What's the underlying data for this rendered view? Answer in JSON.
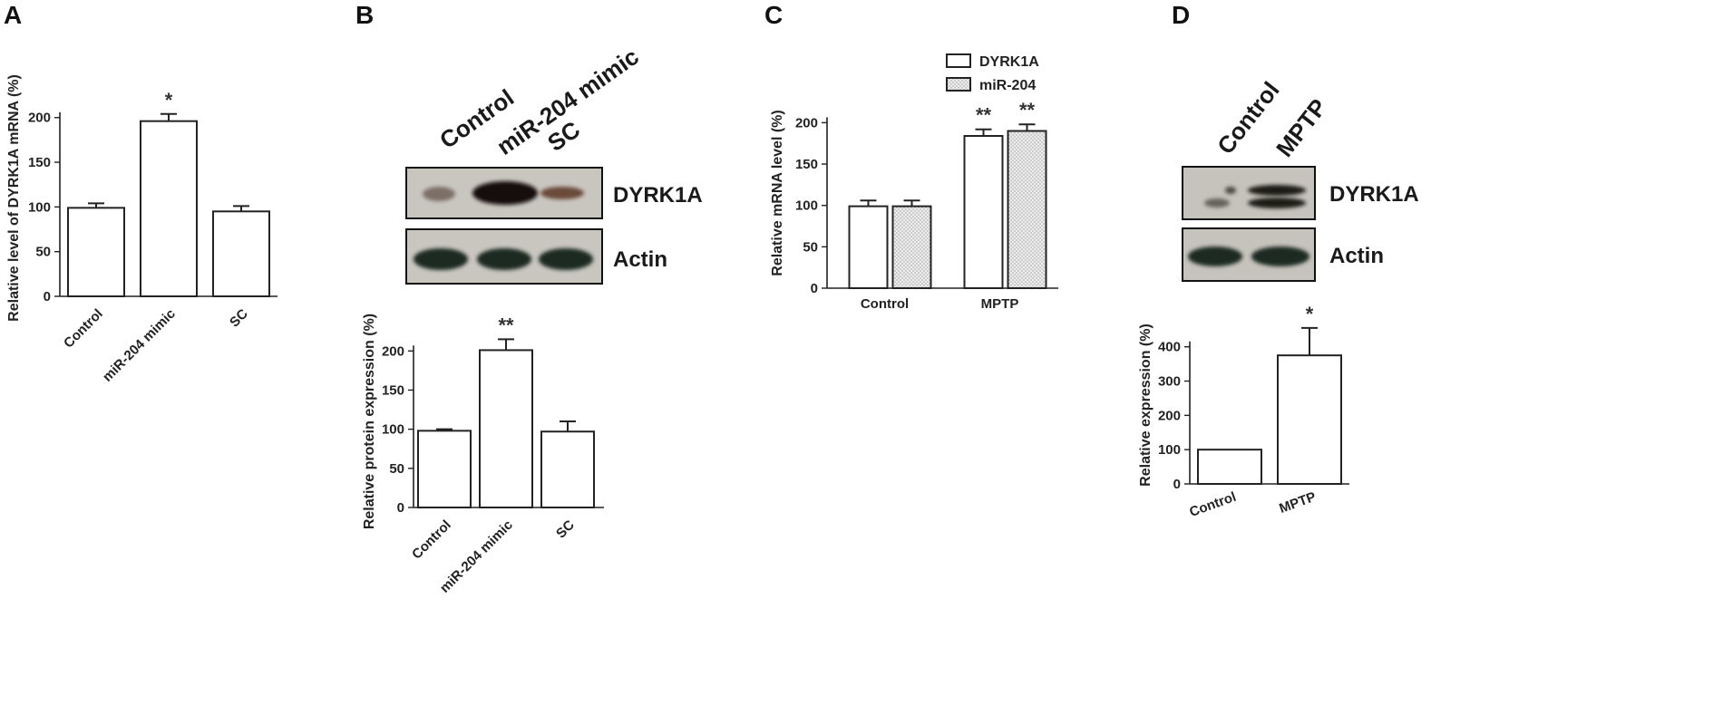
{
  "panels": {
    "A": {
      "letter": "A"
    },
    "B": {
      "letter": "B",
      "blot": {
        "lanes": [
          "Control",
          "miR-204 mimic",
          "SC"
        ],
        "rows": [
          "DYRK1A",
          "Actin"
        ]
      }
    },
    "C": {
      "letter": "C"
    },
    "D": {
      "letter": "D",
      "blot": {
        "lanes": [
          "Control",
          "MPTP"
        ],
        "rows": [
          "DYRK1A",
          "Actin"
        ]
      }
    }
  },
  "colors": {
    "axis": "#222222",
    "bar_fill": "#ffffff",
    "bar_stroke": "#222222",
    "dotted_fill": "#e6e6e6",
    "blot_bg": "#c9c6c0",
    "band_dark": "#1c2a24"
  },
  "chart_data": [
    {
      "id": "A",
      "type": "bar",
      "ylabel": "Relative level of DYRK1A mRNA (%)",
      "categories": [
        "Control",
        "miR-204 mimic",
        "SC"
      ],
      "values": [
        99,
        196,
        95
      ],
      "errors": [
        5,
        8,
        6
      ],
      "significance": [
        "",
        "*",
        ""
      ],
      "ylim": [
        0,
        220
      ],
      "yticks": [
        0,
        50,
        100,
        150,
        200
      ]
    },
    {
      "id": "B",
      "type": "bar",
      "ylabel": "Relative protein expression (%)",
      "categories": [
        "Control",
        "miR-204 mimic",
        "SC"
      ],
      "values": [
        98,
        201,
        97
      ],
      "errors": [
        2,
        14,
        13
      ],
      "significance": [
        "",
        "**",
        ""
      ],
      "ylim": [
        0,
        220
      ],
      "yticks": [
        0,
        50,
        100,
        150,
        200
      ]
    },
    {
      "id": "C",
      "type": "bar",
      "ylabel": "Relative mRNA level (%)",
      "categories": [
        "Control",
        "MPTP"
      ],
      "series": [
        {
          "name": "DYRK1A",
          "values": [
            99,
            184
          ],
          "errors": [
            7,
            8
          ],
          "significance": [
            "",
            "**"
          ]
        },
        {
          "name": "miR-204",
          "values": [
            99,
            190
          ],
          "errors": [
            7,
            8
          ],
          "significance": [
            "",
            "**"
          ]
        }
      ],
      "ylim": [
        0,
        230
      ],
      "yticks": [
        0,
        50,
        100,
        150,
        200
      ],
      "legend": "top"
    },
    {
      "id": "D",
      "type": "bar",
      "ylabel": "Relative expression (%)",
      "categories": [
        "Control",
        "MPTP"
      ],
      "values": [
        100,
        375
      ],
      "errors": [
        0,
        80
      ],
      "significance": [
        "",
        "*"
      ],
      "ylim": [
        0,
        460
      ],
      "yticks": [
        0,
        100,
        200,
        300,
        400
      ]
    }
  ]
}
